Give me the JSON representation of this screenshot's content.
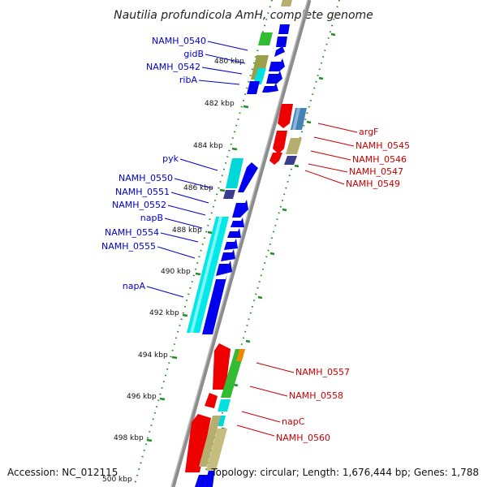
{
  "title": "Nautilia profundicola AmH, complete genome",
  "footer": {
    "accession": "Accession: NC_012115",
    "summary": "Topology: circular; Length: 1,676,444 bp; Genes: 1,788"
  },
  "colors": {
    "backbone": "#8c8c8c",
    "tick": "#228b22",
    "forward_label": "#0000cc",
    "reverse_label": "#cc0000",
    "blue_gene": "#0000ee",
    "red_gene": "#ee0000",
    "cyan_gene": "#00e0e0",
    "green_gene": "#33bb33",
    "olive_gene": "#b5ae6e",
    "steel_gene": "#4682b4",
    "indigo_gene": "#3b3b8f",
    "orange_gene": "#ee8800"
  },
  "scale_labels": [
    {
      "text": "480 kbp",
      "pos": 480
    },
    {
      "text": "482 kbp",
      "pos": 482
    },
    {
      "text": "484 kbp",
      "pos": 484
    },
    {
      "text": "486 kbp",
      "pos": 486
    },
    {
      "text": "488 kbp",
      "pos": 488
    },
    {
      "text": "490 kbp",
      "pos": 490
    },
    {
      "text": "492 kbp",
      "pos": 492
    },
    {
      "text": "494 kbp",
      "pos": 494
    },
    {
      "text": "496 kbp",
      "pos": 496
    },
    {
      "text": "498 kbp",
      "pos": 498
    },
    {
      "text": "500 kbp",
      "pos": 500
    }
  ],
  "forward_labels": [
    "NAMH_0540",
    "gidB",
    "NAMH_0542",
    "ribA",
    "pyk",
    "NAMH_0550",
    "NAMH_0551",
    "NAMH_0552",
    "napB",
    "NAMH_0554",
    "NAMH_0555",
    "napA"
  ],
  "reverse_labels": [
    "argF",
    "NAMH_0545",
    "NAMH_0546",
    "NAMH_0547",
    "NAMH_0549",
    "NAMH_0557",
    "NAMH_0558",
    "napC",
    "NAMH_0560"
  ]
}
